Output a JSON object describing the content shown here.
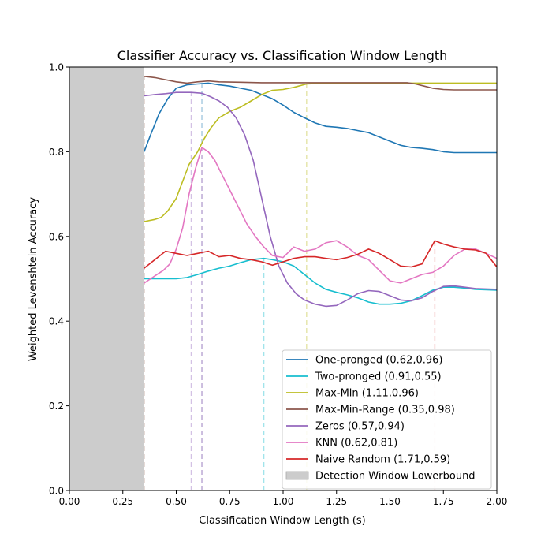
{
  "chart_data": {
    "type": "line",
    "title": "Classifier Accuracy vs. Classification Window Length",
    "xlabel": "Classification Window Length (s)",
    "ylabel": "Weighted Levenshtein Accuracy",
    "xlim": [
      0.0,
      2.0
    ],
    "ylim": [
      0.0,
      1.0
    ],
    "xticks": [
      "0.00",
      "0.25",
      "0.50",
      "0.75",
      "1.00",
      "1.25",
      "1.50",
      "1.75",
      "2.00"
    ],
    "yticks": [
      "0.0",
      "0.2",
      "0.4",
      "0.6",
      "0.8",
      "1.0"
    ],
    "grid": false,
    "legend_position": "lower-right",
    "shaded_region": {
      "label": "Detection Window Lowerbound",
      "x_from": 0.0,
      "x_to": 0.35,
      "color": "#cccccc"
    },
    "series": [
      {
        "name": "One-pronged (0.62,0.96)",
        "color": "#1f77b4",
        "peak_x": 0.62,
        "points": [
          [
            0.35,
            0.8
          ],
          [
            0.38,
            0.84
          ],
          [
            0.42,
            0.89
          ],
          [
            0.46,
            0.925
          ],
          [
            0.5,
            0.95
          ],
          [
            0.55,
            0.958
          ],
          [
            0.6,
            0.96
          ],
          [
            0.65,
            0.962
          ],
          [
            0.7,
            0.958
          ],
          [
            0.75,
            0.955
          ],
          [
            0.8,
            0.95
          ],
          [
            0.85,
            0.945
          ],
          [
            0.9,
            0.935
          ],
          [
            0.95,
            0.925
          ],
          [
            1.0,
            0.91
          ],
          [
            1.05,
            0.893
          ],
          [
            1.1,
            0.88
          ],
          [
            1.15,
            0.868
          ],
          [
            1.2,
            0.86
          ],
          [
            1.25,
            0.858
          ],
          [
            1.3,
            0.855
          ],
          [
            1.35,
            0.85
          ],
          [
            1.4,
            0.845
          ],
          [
            1.45,
            0.835
          ],
          [
            1.5,
            0.825
          ],
          [
            1.55,
            0.815
          ],
          [
            1.6,
            0.81
          ],
          [
            1.65,
            0.808
          ],
          [
            1.7,
            0.805
          ],
          [
            1.75,
            0.8
          ],
          [
            1.8,
            0.798
          ],
          [
            1.9,
            0.798
          ],
          [
            2.0,
            0.798
          ]
        ]
      },
      {
        "name": "Two-pronged (0.91,0.55)",
        "color": "#17becf",
        "peak_x": 0.91,
        "points": [
          [
            0.35,
            0.5
          ],
          [
            0.4,
            0.5
          ],
          [
            0.45,
            0.5
          ],
          [
            0.5,
            0.5
          ],
          [
            0.55,
            0.503
          ],
          [
            0.6,
            0.51
          ],
          [
            0.65,
            0.518
          ],
          [
            0.7,
            0.525
          ],
          [
            0.75,
            0.53
          ],
          [
            0.8,
            0.538
          ],
          [
            0.85,
            0.545
          ],
          [
            0.91,
            0.548
          ],
          [
            0.95,
            0.545
          ],
          [
            1.0,
            0.54
          ],
          [
            1.05,
            0.53
          ],
          [
            1.1,
            0.51
          ],
          [
            1.15,
            0.49
          ],
          [
            1.2,
            0.475
          ],
          [
            1.25,
            0.468
          ],
          [
            1.3,
            0.462
          ],
          [
            1.35,
            0.455
          ],
          [
            1.4,
            0.445
          ],
          [
            1.45,
            0.44
          ],
          [
            1.5,
            0.44
          ],
          [
            1.55,
            0.442
          ],
          [
            1.6,
            0.448
          ],
          [
            1.65,
            0.46
          ],
          [
            1.7,
            0.473
          ],
          [
            1.75,
            0.48
          ],
          [
            1.8,
            0.48
          ],
          [
            1.85,
            0.478
          ],
          [
            1.9,
            0.475
          ],
          [
            2.0,
            0.473
          ]
        ]
      },
      {
        "name": "Max-Min (1.11,0.96)",
        "color": "#bcbd22",
        "peak_x": 1.11,
        "points": [
          [
            0.35,
            0.635
          ],
          [
            0.4,
            0.64
          ],
          [
            0.43,
            0.645
          ],
          [
            0.46,
            0.66
          ],
          [
            0.5,
            0.69
          ],
          [
            0.53,
            0.73
          ],
          [
            0.56,
            0.77
          ],
          [
            0.6,
            0.8
          ],
          [
            0.63,
            0.83
          ],
          [
            0.66,
            0.855
          ],
          [
            0.7,
            0.88
          ],
          [
            0.75,
            0.895
          ],
          [
            0.8,
            0.905
          ],
          [
            0.85,
            0.92
          ],
          [
            0.9,
            0.935
          ],
          [
            0.95,
            0.945
          ],
          [
            1.0,
            0.947
          ],
          [
            1.05,
            0.952
          ],
          [
            1.11,
            0.96
          ],
          [
            1.2,
            0.962
          ],
          [
            1.3,
            0.962
          ],
          [
            1.4,
            0.962
          ],
          [
            1.5,
            0.962
          ],
          [
            1.6,
            0.962
          ],
          [
            1.7,
            0.962
          ],
          [
            1.8,
            0.962
          ],
          [
            1.9,
            0.962
          ],
          [
            2.0,
            0.962
          ]
        ]
      },
      {
        "name": "Max-Min-Range (0.35,0.98)",
        "color": "#8c564b",
        "peak_x": 0.35,
        "points": [
          [
            0.35,
            0.978
          ],
          [
            0.4,
            0.975
          ],
          [
            0.45,
            0.97
          ],
          [
            0.5,
            0.965
          ],
          [
            0.55,
            0.962
          ],
          [
            0.6,
            0.965
          ],
          [
            0.65,
            0.967
          ],
          [
            0.7,
            0.965
          ],
          [
            0.8,
            0.964
          ],
          [
            0.9,
            0.963
          ],
          [
            1.0,
            0.963
          ],
          [
            1.2,
            0.963
          ],
          [
            1.4,
            0.963
          ],
          [
            1.58,
            0.963
          ],
          [
            1.62,
            0.96
          ],
          [
            1.66,
            0.955
          ],
          [
            1.7,
            0.95
          ],
          [
            1.75,
            0.947
          ],
          [
            1.8,
            0.946
          ],
          [
            1.9,
            0.946
          ],
          [
            2.0,
            0.946
          ]
        ]
      },
      {
        "name": "Zeros (0.57,0.94)",
        "color": "#9467bd",
        "peak_x": 0.57,
        "points": [
          [
            0.35,
            0.932
          ],
          [
            0.4,
            0.935
          ],
          [
            0.45,
            0.937
          ],
          [
            0.5,
            0.94
          ],
          [
            0.57,
            0.94
          ],
          [
            0.62,
            0.938
          ],
          [
            0.66,
            0.93
          ],
          [
            0.7,
            0.92
          ],
          [
            0.74,
            0.905
          ],
          [
            0.78,
            0.88
          ],
          [
            0.82,
            0.84
          ],
          [
            0.86,
            0.78
          ],
          [
            0.9,
            0.69
          ],
          [
            0.94,
            0.6
          ],
          [
            0.98,
            0.53
          ],
          [
            1.02,
            0.49
          ],
          [
            1.06,
            0.465
          ],
          [
            1.1,
            0.45
          ],
          [
            1.15,
            0.44
          ],
          [
            1.2,
            0.435
          ],
          [
            1.25,
            0.437
          ],
          [
            1.3,
            0.45
          ],
          [
            1.35,
            0.465
          ],
          [
            1.4,
            0.472
          ],
          [
            1.45,
            0.47
          ],
          [
            1.5,
            0.46
          ],
          [
            1.55,
            0.45
          ],
          [
            1.6,
            0.448
          ],
          [
            1.65,
            0.455
          ],
          [
            1.7,
            0.47
          ],
          [
            1.75,
            0.482
          ],
          [
            1.8,
            0.483
          ],
          [
            1.85,
            0.48
          ],
          [
            1.9,
            0.477
          ],
          [
            2.0,
            0.475
          ]
        ]
      },
      {
        "name": "KNN (0.62,0.81)",
        "color": "#e377c2",
        "peak_x": 0.62,
        "points": [
          [
            0.35,
            0.49
          ],
          [
            0.38,
            0.5
          ],
          [
            0.41,
            0.51
          ],
          [
            0.44,
            0.52
          ],
          [
            0.47,
            0.535
          ],
          [
            0.5,
            0.57
          ],
          [
            0.53,
            0.62
          ],
          [
            0.56,
            0.7
          ],
          [
            0.59,
            0.76
          ],
          [
            0.62,
            0.81
          ],
          [
            0.65,
            0.8
          ],
          [
            0.68,
            0.78
          ],
          [
            0.71,
            0.75
          ],
          [
            0.75,
            0.71
          ],
          [
            0.79,
            0.67
          ],
          [
            0.83,
            0.63
          ],
          [
            0.87,
            0.6
          ],
          [
            0.91,
            0.575
          ],
          [
            0.95,
            0.555
          ],
          [
            1.0,
            0.55
          ],
          [
            1.05,
            0.575
          ],
          [
            1.1,
            0.565
          ],
          [
            1.15,
            0.57
          ],
          [
            1.2,
            0.585
          ],
          [
            1.25,
            0.59
          ],
          [
            1.3,
            0.575
          ],
          [
            1.35,
            0.555
          ],
          [
            1.4,
            0.545
          ],
          [
            1.45,
            0.52
          ],
          [
            1.5,
            0.495
          ],
          [
            1.55,
            0.49
          ],
          [
            1.6,
            0.5
          ],
          [
            1.65,
            0.51
          ],
          [
            1.7,
            0.515
          ],
          [
            1.75,
            0.53
          ],
          [
            1.8,
            0.555
          ],
          [
            1.85,
            0.57
          ],
          [
            1.9,
            0.57
          ],
          [
            1.95,
            0.56
          ],
          [
            2.0,
            0.548
          ]
        ]
      },
      {
        "name": "Naive Random (1.71,0.59)",
        "color": "#d62728",
        "peak_x": 1.71,
        "points": [
          [
            0.35,
            0.525
          ],
          [
            0.4,
            0.545
          ],
          [
            0.45,
            0.565
          ],
          [
            0.5,
            0.56
          ],
          [
            0.55,
            0.555
          ],
          [
            0.6,
            0.56
          ],
          [
            0.65,
            0.565
          ],
          [
            0.7,
            0.552
          ],
          [
            0.75,
            0.555
          ],
          [
            0.8,
            0.548
          ],
          [
            0.85,
            0.545
          ],
          [
            0.9,
            0.54
          ],
          [
            0.95,
            0.532
          ],
          [
            1.0,
            0.54
          ],
          [
            1.05,
            0.548
          ],
          [
            1.1,
            0.552
          ],
          [
            1.15,
            0.552
          ],
          [
            1.2,
            0.548
          ],
          [
            1.25,
            0.545
          ],
          [
            1.3,
            0.55
          ],
          [
            1.35,
            0.558
          ],
          [
            1.4,
            0.57
          ],
          [
            1.45,
            0.56
          ],
          [
            1.5,
            0.545
          ],
          [
            1.55,
            0.53
          ],
          [
            1.6,
            0.528
          ],
          [
            1.65,
            0.535
          ],
          [
            1.71,
            0.59
          ],
          [
            1.75,
            0.582
          ],
          [
            1.8,
            0.575
          ],
          [
            1.85,
            0.57
          ],
          [
            1.9,
            0.568
          ],
          [
            1.95,
            0.56
          ],
          [
            2.0,
            0.528
          ]
        ]
      }
    ]
  }
}
